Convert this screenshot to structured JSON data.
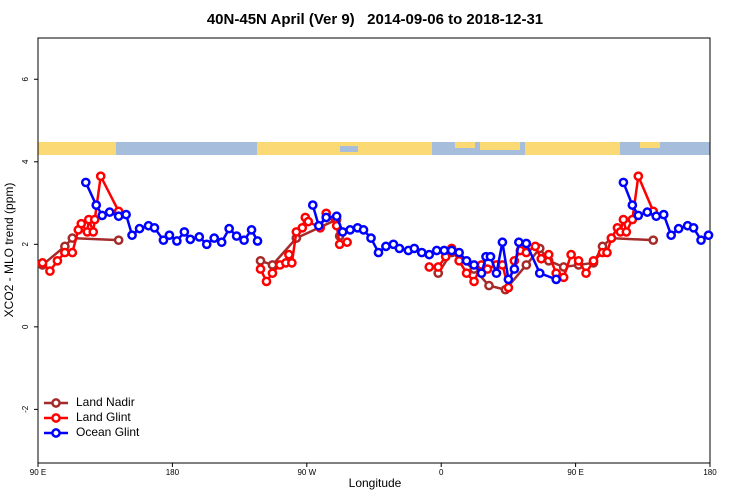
{
  "chart_data": {
    "type": "line",
    "title": "40N-45N April (Ver 9)   2014-09-06 to 2018-12-31",
    "xlabel": "Longitude",
    "ylabel": "XCO2 - MLO trend (ppm)",
    "xlim": [
      90,
      540
    ],
    "xticks": [
      {
        "value": 90,
        "label": "90 E"
      },
      {
        "value": 180,
        "label": "180"
      },
      {
        "value": 270,
        "label": "90 W"
      },
      {
        "value": 360,
        "label": "0"
      },
      {
        "value": 450,
        "label": "90 E"
      },
      {
        "value": 540,
        "label": "180"
      }
    ],
    "ylim": [
      -3.3,
      7
    ],
    "yticks": [
      -2,
      0,
      2,
      4,
      6
    ],
    "legend": "bottom-left",
    "series": [
      {
        "name": "Land Nadir",
        "color": "#a52a2a",
        "x": [
          93,
          108,
          113,
          144,
          null,
          239,
          247,
          263,
          290,
          292,
          null,
          358,
          367,
          382,
          392,
          403,
          417,
          426,
          432,
          442,
          452,
          462,
          468,
          474,
          502
        ],
        "values": [
          1.5,
          1.95,
          2.15,
          2.1,
          null,
          1.6,
          1.5,
          2.15,
          2.6,
          2.2,
          null,
          1.3,
          1.8,
          1.4,
          1.0,
          0.9,
          1.5,
          1.9,
          1.6,
          1.45,
          1.5,
          1.55,
          1.95,
          2.15,
          2.1
        ]
      },
      {
        "name": "Land Glint",
        "color": "#ff0000",
        "x": [
          93,
          98,
          103,
          108,
          113,
          117,
          119,
          123,
          124,
          127,
          128,
          132,
          144,
          null,
          239,
          243,
          247,
          252,
          256,
          258,
          260,
          263,
          267,
          269,
          271,
          279,
          283,
          290,
          292,
          297,
          null,
          352,
          358,
          363,
          367,
          372,
          377,
          382,
          387,
          391,
          397,
          401,
          405,
          409,
          413,
          417,
          423,
          427,
          432,
          437,
          442,
          447,
          452,
          457,
          462,
          468,
          471,
          474,
          478,
          480,
          482,
          484,
          488,
          492,
          502
        ],
        "values": [
          1.55,
          1.35,
          1.6,
          1.8,
          1.8,
          2.35,
          2.5,
          2.3,
          2.6,
          2.3,
          2.6,
          3.65,
          2.8,
          null,
          1.4,
          1.1,
          1.3,
          1.5,
          1.55,
          1.75,
          1.55,
          2.3,
          2.4,
          2.65,
          2.55,
          2.4,
          2.75,
          2.45,
          2.0,
          2.05,
          null,
          1.45,
          1.45,
          1.7,
          1.9,
          1.6,
          1.3,
          1.1,
          1.5,
          1.4,
          1.5,
          1.5,
          0.95,
          1.6,
          1.85,
          1.8,
          1.95,
          1.65,
          1.75,
          1.3,
          1.2,
          1.75,
          1.6,
          1.3,
          1.6,
          1.8,
          1.8,
          2.15,
          2.4,
          2.3,
          2.6,
          2.3,
          2.6,
          3.65,
          2.8
        ]
      },
      {
        "name": "Ocean Glint",
        "color": "#0000ff",
        "x": [
          122,
          129,
          133,
          138,
          144,
          149,
          153,
          158,
          164,
          168,
          174,
          178,
          183,
          188,
          192,
          198,
          203,
          208,
          213,
          218,
          223,
          228,
          233,
          237,
          null,
          274,
          278,
          283,
          290,
          294,
          299,
          304,
          308,
          313,
          318,
          323,
          328,
          332,
          338,
          342,
          347,
          352,
          357,
          362,
          367,
          372,
          377,
          382,
          387,
          390,
          393,
          397,
          401,
          405,
          409,
          412,
          417,
          426,
          437,
          null,
          482,
          488,
          492,
          498,
          504,
          509,
          514,
          519,
          525,
          529,
          534,
          539
        ],
        "values": [
          3.5,
          2.95,
          2.7,
          2.78,
          2.68,
          2.72,
          2.22,
          2.38,
          2.45,
          2.4,
          2.1,
          2.22,
          2.08,
          2.3,
          2.12,
          2.18,
          2.0,
          2.15,
          2.05,
          2.38,
          2.2,
          2.1,
          2.35,
          2.08,
          null,
          2.95,
          2.45,
          2.65,
          2.68,
          2.3,
          2.35,
          2.4,
          2.35,
          2.15,
          1.8,
          1.95,
          2.0,
          1.9,
          1.85,
          1.9,
          1.8,
          1.75,
          1.85,
          1.85,
          1.85,
          1.8,
          1.6,
          1.5,
          1.3,
          1.7,
          1.7,
          1.3,
          2.05,
          1.15,
          1.4,
          2.05,
          2.02,
          1.3,
          1.15,
          null,
          3.5,
          2.95,
          2.7,
          2.78,
          2.68,
          2.72,
          2.22,
          2.38,
          2.45,
          2.4,
          2.1,
          2.22
        ]
      }
    ]
  }
}
